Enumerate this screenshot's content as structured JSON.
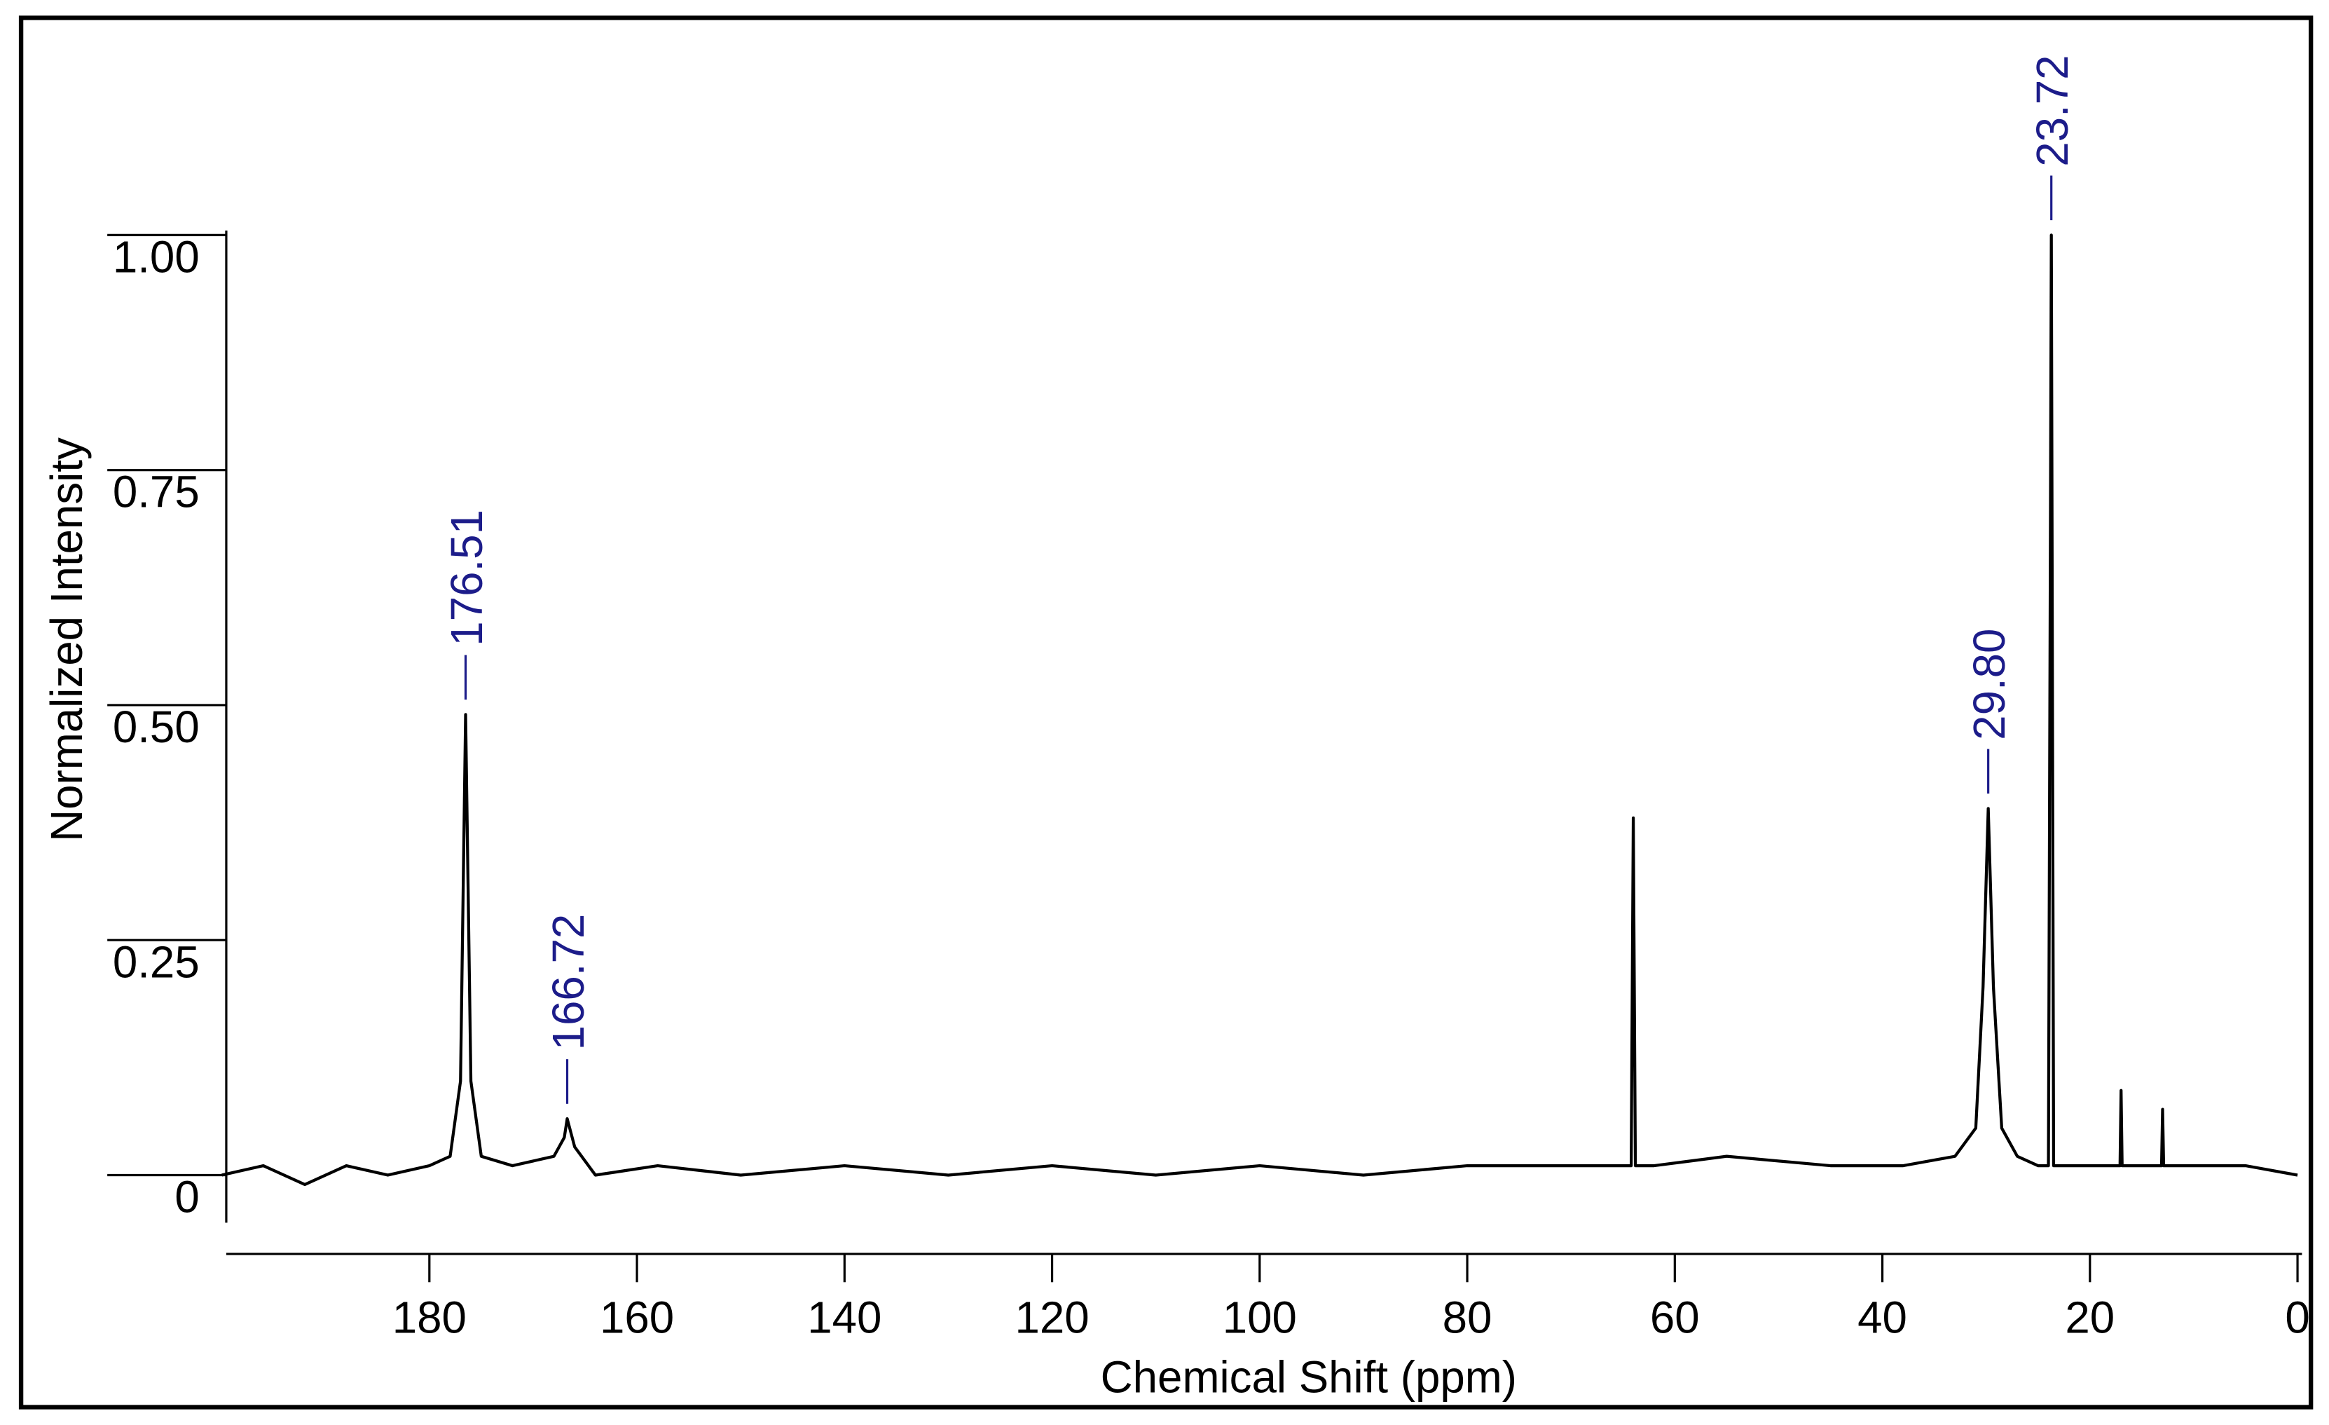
{
  "chart_data": {
    "type": "line",
    "x_label": "Chemical Shift (ppm)",
    "y_label": "Normalized Intensity",
    "x": [
      200,
      196,
      192,
      188,
      184,
      180,
      178,
      177,
      176.51,
      176,
      175,
      172,
      168,
      167,
      166.72,
      166,
      164,
      158,
      150,
      140,
      130,
      120,
      110,
      100,
      90,
      80,
      70,
      66,
      64.2,
      64,
      63.8,
      62,
      55,
      45,
      38,
      33,
      31,
      30.3,
      29.8,
      29.3,
      28.5,
      27,
      25,
      24,
      23.72,
      23.5,
      22,
      19,
      17.1,
      17,
      16.9,
      13.1,
      13,
      12.9,
      5,
      0
    ],
    "series": [
      {
        "color": "#000000",
        "values": [
          0.0,
          0.01,
          -0.01,
          0.01,
          0.0,
          0.01,
          0.02,
          0.1,
          0.49,
          0.1,
          0.02,
          0.01,
          0.02,
          0.04,
          0.06,
          0.03,
          0.0,
          0.01,
          0.0,
          0.01,
          0.0,
          0.01,
          0.0,
          0.01,
          0.0,
          0.01,
          0.01,
          0.01,
          0.01,
          0.38,
          0.01,
          0.01,
          0.02,
          0.01,
          0.01,
          0.02,
          0.05,
          0.2,
          0.39,
          0.2,
          0.05,
          0.02,
          0.01,
          0.01,
          1.0,
          0.01,
          0.01,
          0.01,
          0.01,
          0.09,
          0.01,
          0.01,
          0.07,
          0.01,
          0.01,
          0.0
        ]
      }
    ],
    "xlim": [
      200,
      0
    ],
    "xticks": [
      180,
      160,
      140,
      120,
      100,
      80,
      60,
      40,
      20,
      0
    ],
    "ylim": [
      -0.05,
      1.02
    ],
    "yticks": [
      0,
      {
        "value": 0.25,
        "label": "0.25"
      },
      {
        "value": 0.5,
        "label": "0.50"
      },
      {
        "value": 0.75,
        "label": "0.75"
      },
      {
        "value": 1,
        "label": "1.00"
      }
    ],
    "annotations": [
      {
        "text": "176.51",
        "x": 176.51,
        "y": 0.49
      },
      {
        "text": "166.72",
        "x": 166.72,
        "y": 0.06
      },
      {
        "text": "29.80",
        "x": 29.8,
        "y": 0.39
      },
      {
        "text": "23.72",
        "x": 23.72,
        "y": 1.0
      }
    ],
    "annotation_color": "#1c1c8a"
  }
}
